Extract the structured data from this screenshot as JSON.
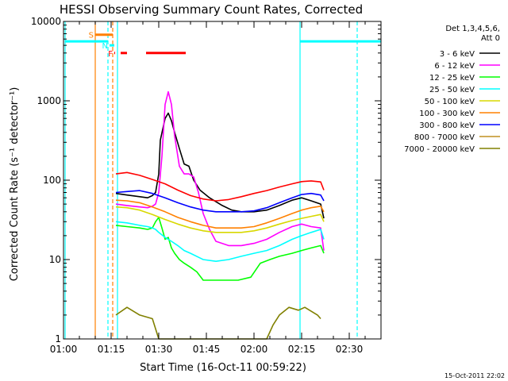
{
  "chart_data": {
    "type": "line",
    "title": "HESSI Observing Summary Count Rates, Corrected",
    "xlabel": "Start Time (16-Oct-11 00:59:22)",
    "ylabel": "Corrected Count Rate (s⁻¹ detector⁻¹)",
    "x_unit": "minutes",
    "xlim": [
      60,
      160
    ],
    "ylim": [
      1,
      10000
    ],
    "y_scale": "log",
    "x_ticks": [
      {
        "value": 60,
        "label": "01:00"
      },
      {
        "value": 75,
        "label": "01:15"
      },
      {
        "value": 90,
        "label": "01:30"
      },
      {
        "value": 105,
        "label": "01:45"
      },
      {
        "value": 120,
        "label": "02:00"
      },
      {
        "value": 135,
        "label": "02:15"
      },
      {
        "value": 150,
        "label": "02:30"
      }
    ],
    "y_ticks": [
      {
        "value": 1,
        "label": "1"
      },
      {
        "value": 10,
        "label": "10"
      },
      {
        "value": 100,
        "label": "100"
      },
      {
        "value": 1000,
        "label": "1000"
      },
      {
        "value": 10000,
        "label": "10000"
      }
    ],
    "legend_title": [
      "Det 1,3,4,5,6,",
      "Att 0"
    ],
    "legend_position": "top-right",
    "series": [
      {
        "name": "3 - 6 keV",
        "color": "#000000",
        "points": [
          [
            76.5,
            68
          ],
          [
            80,
            65
          ],
          [
            84,
            62
          ],
          [
            86.5,
            60
          ],
          [
            88,
            64
          ],
          [
            89,
            70
          ],
          [
            90,
            120
          ],
          [
            90.5,
            320
          ],
          [
            92,
            600
          ],
          [
            93,
            700
          ],
          [
            94,
            560
          ],
          [
            95,
            400
          ],
          [
            96.5,
            250
          ],
          [
            98,
            160
          ],
          [
            99.5,
            150
          ],
          [
            101,
            100
          ],
          [
            103,
            75
          ],
          [
            106,
            60
          ],
          [
            110,
            48
          ],
          [
            113,
            42
          ],
          [
            116,
            40
          ],
          [
            120,
            40
          ],
          [
            124,
            42
          ],
          [
            128,
            48
          ],
          [
            132,
            56
          ],
          [
            135,
            60
          ],
          [
            138,
            55
          ],
          [
            141,
            50
          ],
          [
            142,
            33
          ]
        ]
      },
      {
        "name": "6 - 12 keV",
        "color": "#ff00ff",
        "points": [
          [
            76.5,
            50
          ],
          [
            80,
            48
          ],
          [
            84,
            46
          ],
          [
            86.5,
            45
          ],
          [
            88,
            47
          ],
          [
            89,
            50
          ],
          [
            90,
            70
          ],
          [
            91,
            200
          ],
          [
            92,
            900
          ],
          [
            93,
            1300
          ],
          [
            94,
            900
          ],
          [
            95,
            360
          ],
          [
            96.5,
            150
          ],
          [
            98,
            120
          ],
          [
            99.5,
            120
          ],
          [
            101,
            110
          ],
          [
            102.5,
            70
          ],
          [
            104,
            38
          ],
          [
            106,
            24
          ],
          [
            108,
            17
          ],
          [
            112,
            15
          ],
          [
            116,
            15
          ],
          [
            120,
            16
          ],
          [
            124,
            18
          ],
          [
            128,
            22
          ],
          [
            132,
            26
          ],
          [
            135,
            28
          ],
          [
            138,
            26
          ],
          [
            141,
            25
          ],
          [
            142,
            13
          ]
        ]
      },
      {
        "name": "12 - 25 keV",
        "color": "#00ff00",
        "points": [
          [
            76.5,
            27
          ],
          [
            80,
            26
          ],
          [
            84,
            25
          ],
          [
            86.5,
            24
          ],
          [
            88,
            25
          ],
          [
            89,
            30
          ],
          [
            90,
            34
          ],
          [
            91,
            25
          ],
          [
            92,
            18
          ],
          [
            93,
            19
          ],
          [
            94,
            14
          ],
          [
            95,
            12
          ],
          [
            96.5,
            10
          ],
          [
            98,
            9
          ],
          [
            100,
            8
          ],
          [
            102,
            7
          ],
          [
            104,
            5.5
          ],
          [
            106,
            5.5
          ],
          [
            110,
            5.5
          ],
          [
            115,
            5.5
          ],
          [
            119,
            6
          ],
          [
            122,
            9
          ],
          [
            125,
            10
          ],
          [
            128,
            11
          ],
          [
            132,
            12
          ],
          [
            135,
            13
          ],
          [
            138,
            14
          ],
          [
            141,
            15
          ],
          [
            142,
            12
          ]
        ]
      },
      {
        "name": "25 - 50 keV",
        "color": "#00ffff",
        "points": [
          [
            76.5,
            30
          ],
          [
            80,
            29
          ],
          [
            84,
            27
          ],
          [
            86.5,
            26
          ],
          [
            88,
            25
          ],
          [
            89,
            24
          ],
          [
            90,
            22
          ],
          [
            92,
            19
          ],
          [
            94,
            17
          ],
          [
            96,
            15
          ],
          [
            98,
            13
          ],
          [
            100,
            12
          ],
          [
            104,
            10
          ],
          [
            108,
            9.5
          ],
          [
            112,
            10
          ],
          [
            116,
            11
          ],
          [
            120,
            12
          ],
          [
            124,
            13
          ],
          [
            128,
            15
          ],
          [
            132,
            18
          ],
          [
            135,
            20
          ],
          [
            138,
            22
          ],
          [
            141,
            24
          ],
          [
            142,
            18
          ]
        ]
      },
      {
        "name": "50 - 100 keV",
        "color": "#d8d800",
        "points": [
          [
            76.5,
            46
          ],
          [
            80,
            45
          ],
          [
            84,
            42
          ],
          [
            88,
            37
          ],
          [
            92,
            32
          ],
          [
            96,
            28
          ],
          [
            100,
            25
          ],
          [
            104,
            23
          ],
          [
            108,
            22
          ],
          [
            112,
            22
          ],
          [
            116,
            22
          ],
          [
            120,
            23
          ],
          [
            124,
            25
          ],
          [
            128,
            28
          ],
          [
            132,
            31
          ],
          [
            135,
            33
          ],
          [
            138,
            35
          ],
          [
            141,
            37
          ],
          [
            142,
            30
          ]
        ]
      },
      {
        "name": "100 - 300 keV",
        "color": "#ff8000",
        "points": [
          [
            76.5,
            56
          ],
          [
            80,
            55
          ],
          [
            84,
            52
          ],
          [
            88,
            46
          ],
          [
            92,
            40
          ],
          [
            96,
            34
          ],
          [
            100,
            30
          ],
          [
            104,
            27
          ],
          [
            108,
            25
          ],
          [
            112,
            25
          ],
          [
            116,
            25
          ],
          [
            120,
            26
          ],
          [
            124,
            29
          ],
          [
            128,
            33
          ],
          [
            132,
            38
          ],
          [
            135,
            42
          ],
          [
            138,
            45
          ],
          [
            141,
            47
          ],
          [
            142,
            40
          ]
        ]
      },
      {
        "name": "300 - 800 keV",
        "color": "#0000ff",
        "points": [
          [
            76.5,
            70
          ],
          [
            80,
            72
          ],
          [
            84,
            74
          ],
          [
            88,
            68
          ],
          [
            92,
            60
          ],
          [
            96,
            52
          ],
          [
            100,
            46
          ],
          [
            104,
            42
          ],
          [
            108,
            40
          ],
          [
            112,
            40
          ],
          [
            116,
            40
          ],
          [
            120,
            41
          ],
          [
            124,
            45
          ],
          [
            128,
            52
          ],
          [
            132,
            60
          ],
          [
            135,
            66
          ],
          [
            138,
            68
          ],
          [
            141,
            65
          ],
          [
            142,
            55
          ]
        ]
      },
      {
        "name": "800 - 7000 keV",
        "color": "#c09020",
        "points": []
      },
      {
        "name": "7000 - 20000 keV",
        "color": "#808000",
        "points": [
          [
            76.5,
            2
          ],
          [
            80,
            2.5
          ],
          [
            84,
            2
          ],
          [
            88,
            1.8
          ],
          [
            90,
            1
          ],
          [
            98,
            1
          ],
          [
            100,
            1
          ],
          [
            124,
            1
          ],
          [
            126,
            1.5
          ],
          [
            128,
            2
          ],
          [
            131,
            2.5
          ],
          [
            134,
            2.3
          ],
          [
            136,
            2.5
          ],
          [
            140,
            2
          ],
          [
            141,
            1.8
          ]
        ]
      },
      {
        "name": "",
        "color": "#ff0000",
        "points": [
          [
            76.5,
            120
          ],
          [
            80,
            125
          ],
          [
            84,
            115
          ],
          [
            88,
            102
          ],
          [
            92,
            90
          ],
          [
            96,
            75
          ],
          [
            100,
            64
          ],
          [
            104,
            58
          ],
          [
            108,
            55
          ],
          [
            112,
            57
          ],
          [
            116,
            62
          ],
          [
            120,
            68
          ],
          [
            124,
            74
          ],
          [
            128,
            82
          ],
          [
            132,
            90
          ],
          [
            135,
            96
          ],
          [
            138,
            98
          ],
          [
            141,
            95
          ],
          [
            142,
            75
          ]
        ]
      }
    ],
    "vertical_lines": [
      {
        "x": 60.5,
        "color": "#00ffff",
        "style": "solid"
      },
      {
        "x": 70,
        "color": "#ff8000",
        "style": "solid"
      },
      {
        "x": 74,
        "color": "#00ffff",
        "style": "dashed"
      },
      {
        "x": 75.5,
        "color": "#ff8000",
        "style": "dashed"
      },
      {
        "x": 77,
        "color": "#00ffff",
        "style": "solid"
      },
      {
        "x": 134.5,
        "color": "#00ffff",
        "style": "solid"
      },
      {
        "x": 152.5,
        "color": "#00ffff",
        "style": "dashed"
      }
    ],
    "top_segments": [
      {
        "x1": 60.5,
        "x2": 74,
        "y": 5600,
        "color": "#00ffff",
        "label": ""
      },
      {
        "x1": 134.5,
        "x2": 160,
        "y": 5600,
        "color": "#00ffff",
        "label": ""
      },
      {
        "x1": 70,
        "x2": 75.5,
        "y": 6800,
        "color": "#ff8000",
        "label": "S"
      },
      {
        "x1": 74.5,
        "x2": 76,
        "y": 5000,
        "color": "#00ffff",
        "label": "N"
      },
      {
        "x1": 76,
        "x2": 76,
        "y": 4000,
        "color": "#ff0000",
        "label": "F"
      },
      {
        "x1": 78,
        "x2": 80,
        "y": 4000,
        "color": "#ff0000",
        "label": ""
      },
      {
        "x1": 86,
        "x2": 98.5,
        "y": 4000,
        "color": "#ff0000",
        "label": ""
      }
    ],
    "timestamp": "15-Oct-2011 22:02"
  }
}
